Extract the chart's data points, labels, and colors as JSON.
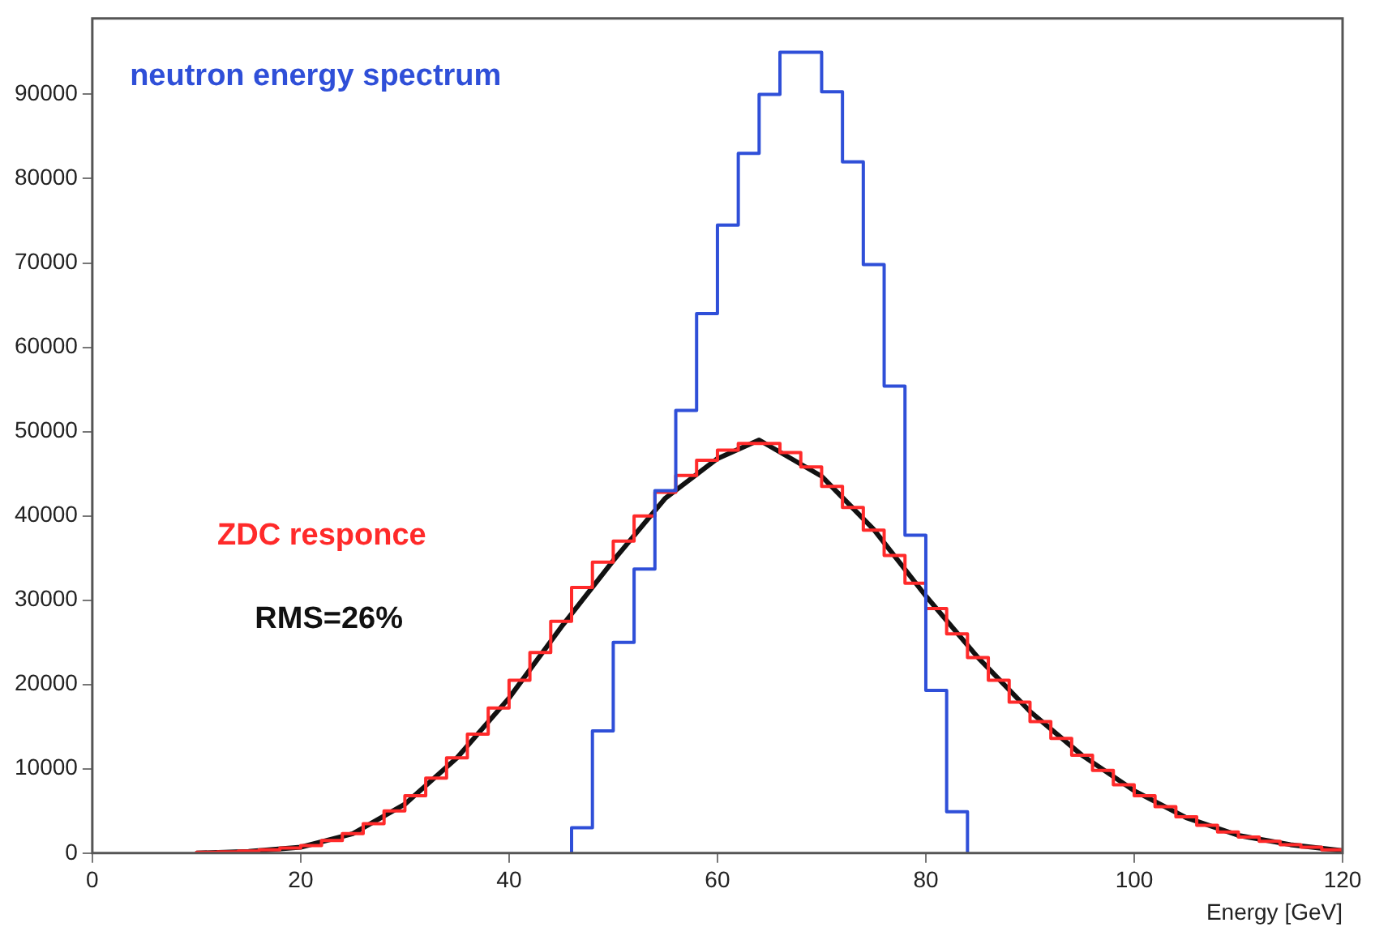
{
  "chart_data": {
    "type": "histogram",
    "xlabel": "Energy [GeV]",
    "annotations": [
      "RMS=26%"
    ],
    "xlim": [
      0,
      120
    ],
    "xticks": [
      0,
      20,
      40,
      60,
      80,
      100,
      120
    ],
    "ylim": [
      0,
      99000
    ],
    "yticks": [
      0,
      10000,
      20000,
      30000,
      40000,
      50000,
      60000,
      70000,
      80000,
      90000
    ],
    "grid": false,
    "legend": false,
    "series": [
      {
        "name": "neutron energy spectrum",
        "color": "#2f4fd8",
        "bins": [
          46,
          48,
          50,
          52,
          54,
          56,
          58,
          60,
          62,
          64,
          66,
          68,
          70,
          72,
          74,
          76,
          78,
          80,
          82,
          84
        ],
        "values": [
          3000,
          14500,
          25000,
          33700,
          43000,
          52500,
          64000,
          74500,
          83000,
          90000,
          95000,
          95000,
          90300,
          82000,
          69800,
          55400,
          37700,
          19300,
          4900
        ]
      },
      {
        "name": "ZDC responce",
        "color": "#ff2a2a",
        "bins": [
          10,
          12,
          14,
          16,
          18,
          20,
          22,
          24,
          26,
          28,
          30,
          32,
          34,
          36,
          38,
          40,
          42,
          44,
          46,
          48,
          50,
          52,
          54,
          56,
          58,
          60,
          62,
          64,
          66,
          68,
          70,
          72,
          74,
          76,
          78,
          80,
          82,
          84,
          86,
          88,
          90,
          92,
          94,
          96,
          98,
          100,
          102,
          104,
          106,
          108,
          110,
          112,
          114,
          116,
          118,
          120
        ],
        "values": [
          100,
          150,
          250,
          400,
          600,
          900,
          1500,
          2300,
          3500,
          5000,
          6800,
          8900,
          11300,
          14100,
          17200,
          20500,
          23800,
          27500,
          31500,
          34500,
          37000,
          40000,
          42800,
          44800,
          46600,
          47800,
          48600,
          48600,
          47500,
          45800,
          43500,
          41000,
          38300,
          35300,
          32000,
          29000,
          26000,
          23200,
          20500,
          17900,
          15600,
          13600,
          11600,
          9800,
          8100,
          6800,
          5500,
          4300,
          3300,
          2500,
          1900,
          1400,
          1000,
          700,
          400
        ]
      },
      {
        "type": "line",
        "color": "#111111",
        "x": [
          10,
          15,
          20,
          25,
          30,
          35,
          40,
          45,
          50,
          55,
          60,
          64,
          70,
          75,
          80,
          85,
          90,
          95,
          100,
          105,
          110,
          115,
          120
        ],
        "values": [
          0,
          200,
          700,
          2300,
          5800,
          11300,
          18400,
          26800,
          34700,
          42100,
          46800,
          49000,
          44700,
          38400,
          30500,
          23200,
          16800,
          11600,
          7400,
          4200,
          2100,
          1000,
          300
        ]
      }
    ]
  }
}
